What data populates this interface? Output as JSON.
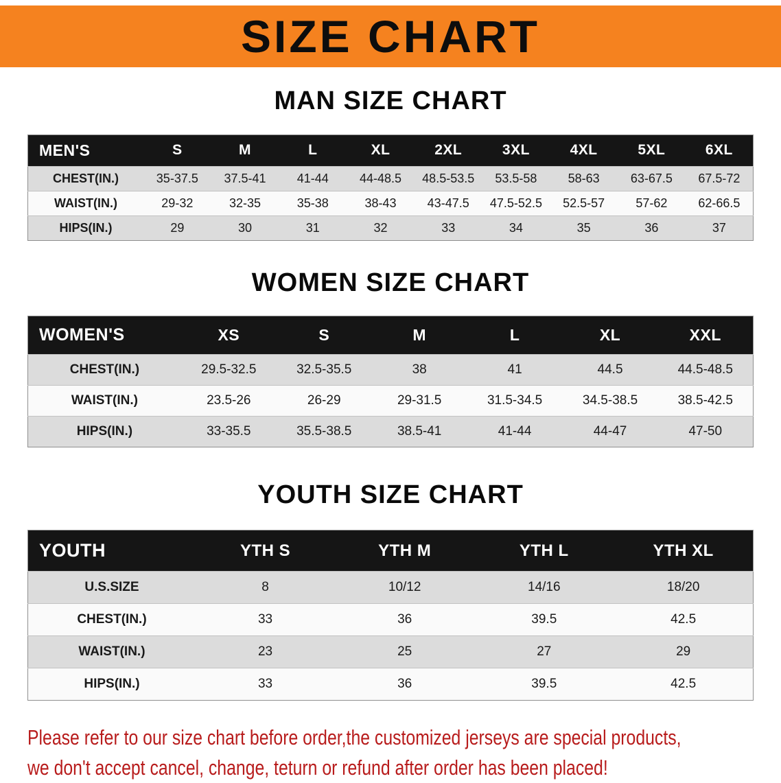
{
  "banner": {
    "title": "SIZE CHART"
  },
  "colors": {
    "banner_bg": "#F5821F",
    "table_header_bg": "#151515",
    "row_stripe": "#DCDCDC",
    "notice_red": "#B81C1C"
  },
  "sections": [
    {
      "id": "men",
      "heading": "MAN SIZE CHART",
      "header": [
        "MEN'S",
        "S",
        "M",
        "L",
        "XL",
        "2XL",
        "3XL",
        "4XL",
        "5XL",
        "6XL"
      ],
      "rows": [
        [
          "CHEST(IN.)",
          "35-37.5",
          "37.5-41",
          "41-44",
          "44-48.5",
          "48.5-53.5",
          "53.5-58",
          "58-63",
          "63-67.5",
          "67.5-72"
        ],
        [
          "WAIST(IN.)",
          "29-32",
          "32-35",
          "35-38",
          "38-43",
          "43-47.5",
          "47.5-52.5",
          "52.5-57",
          "57-62",
          "62-66.5"
        ],
        [
          "HIPS(IN.)",
          "29",
          "30",
          "31",
          "32",
          "33",
          "34",
          "35",
          "36",
          "37"
        ]
      ]
    },
    {
      "id": "women",
      "heading": "WOMEN SIZE CHART",
      "header": [
        "WOMEN'S",
        "XS",
        "S",
        "M",
        "L",
        "XL",
        "XXL"
      ],
      "rows": [
        [
          "CHEST(IN.)",
          "29.5-32.5",
          "32.5-35.5",
          "38",
          "41",
          "44.5",
          "44.5-48.5"
        ],
        [
          "WAIST(IN.)",
          "23.5-26",
          "26-29",
          "29-31.5",
          "31.5-34.5",
          "34.5-38.5",
          "38.5-42.5"
        ],
        [
          "HIPS(IN.)",
          "33-35.5",
          "35.5-38.5",
          "38.5-41",
          "41-44",
          "44-47",
          "47-50"
        ]
      ]
    },
    {
      "id": "youth",
      "heading": "YOUTH SIZE CHART",
      "header": [
        "YOUTH",
        "YTH S",
        "YTH M",
        "YTH L",
        "YTH XL"
      ],
      "rows": [
        [
          "U.S.SIZE",
          "8",
          "10/12",
          "14/16",
          "18/20"
        ],
        [
          "CHEST(IN.)",
          "33",
          "36",
          "39.5",
          "42.5"
        ],
        [
          "WAIST(IN.)",
          "23",
          "25",
          "27",
          "29"
        ],
        [
          "HIPS(IN.)",
          "33",
          "36",
          "39.5",
          "42.5"
        ]
      ]
    }
  ],
  "notice": {
    "lines": [
      "Please refer to our size chart before order,the customized jerseys are special products,",
      "we don't accept cancel, change, teturn or refund after order has been placed!"
    ]
  }
}
